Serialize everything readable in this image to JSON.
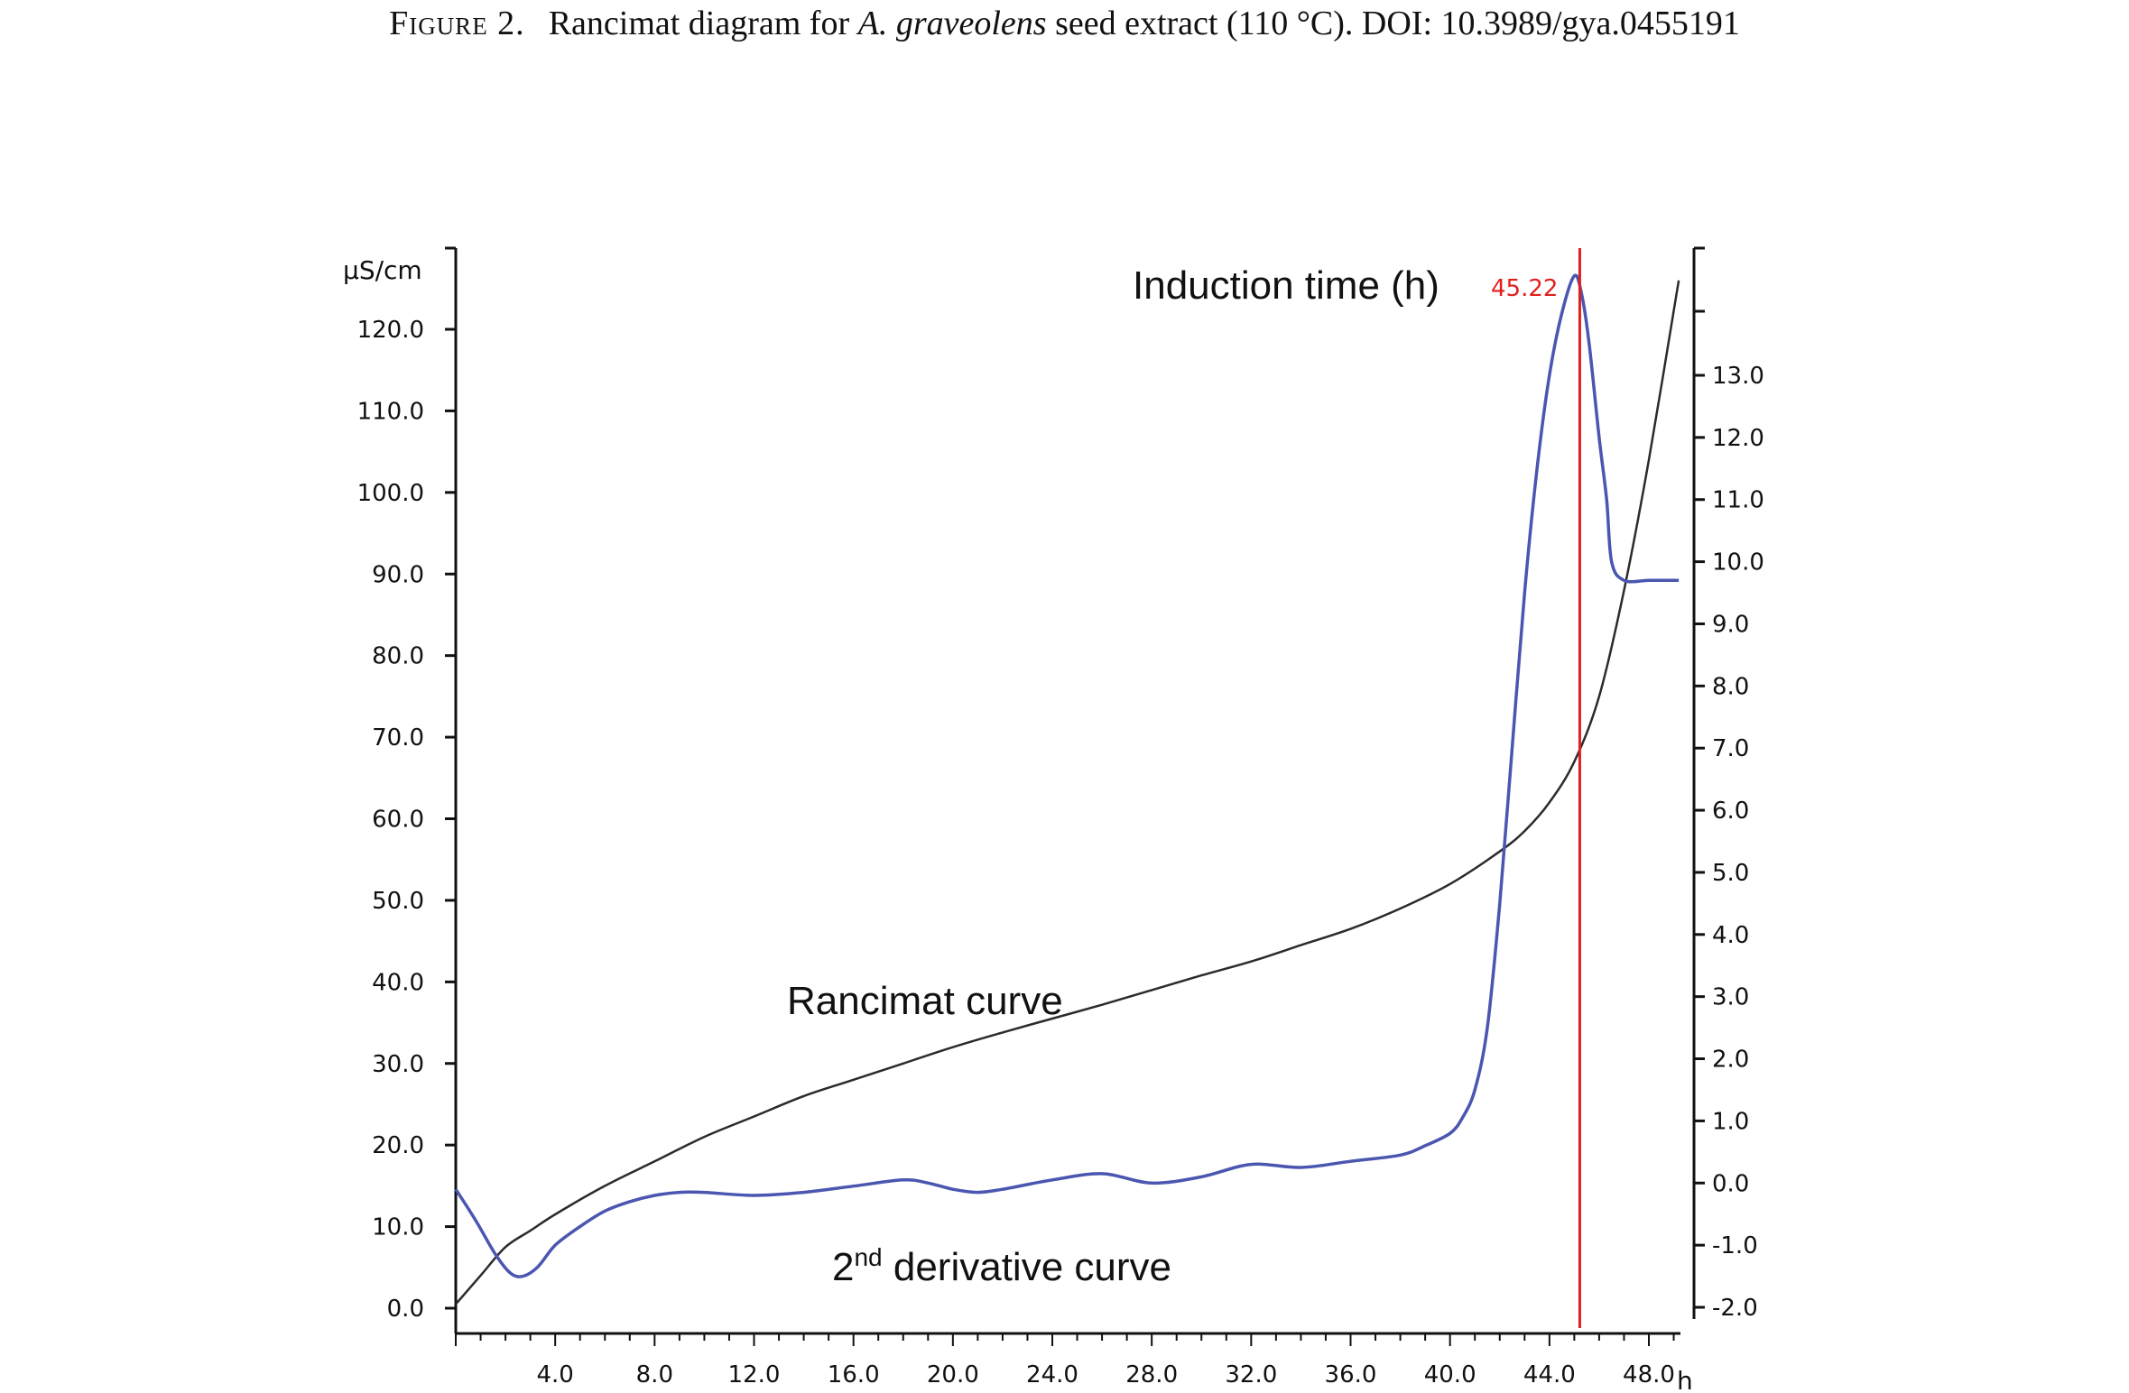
{
  "caption": {
    "prefix": "Figure 2.",
    "text_before": "Rancimat diagram for ",
    "species": "A. graveolens",
    "text_after": " seed extract (110 °C). DOI: 10.3989/gya.0455191"
  },
  "chart_data": {
    "type": "line",
    "title": "",
    "xlabel": "h",
    "ylabel": "μS/cm",
    "xlim": [
      0,
      49.5
    ],
    "ylim": [
      -1.5,
      128
    ],
    "y2lim": [
      -2.2,
      14.8
    ],
    "x_ticks": [
      "4.0",
      "8.0",
      "12.0",
      "16.0",
      "20.0",
      "24.0",
      "28.0",
      "32.0",
      "36.0",
      "40.0",
      "44.0",
      "48.0"
    ],
    "y_ticks": [
      "0.0",
      "10.0",
      "20.0",
      "30.0",
      "40.0",
      "50.0",
      "60.0",
      "70.0",
      "80.0",
      "90.0",
      "100.0",
      "110.0",
      "120.0"
    ],
    "y2_ticks": [
      "-2.0",
      "-1.0",
      "0.0",
      "1.0",
      "2.0",
      "3.0",
      "4.0",
      "5.0",
      "6.0",
      "7.0",
      "8.0",
      "9.0",
      "10.0",
      "11.0",
      "12.0",
      "13.0"
    ],
    "grid": false,
    "series": [
      {
        "name": "Rancimat curve",
        "axis": "left",
        "color": "#2b2b2b",
        "x": [
          0,
          1,
          2,
          3,
          4,
          6,
          8,
          10,
          12,
          14,
          16,
          18,
          20,
          22,
          24,
          26,
          28,
          30,
          32,
          34,
          36,
          38,
          40,
          42,
          43,
          44,
          45,
          46,
          47,
          48,
          49.2
        ],
        "y": [
          0.5,
          4,
          7.5,
          9.5,
          11.5,
          15,
          18,
          21,
          23.5,
          26,
          28,
          30,
          32,
          33.8,
          35.5,
          37.2,
          39,
          40.8,
          42.5,
          44.5,
          46.5,
          49,
          52,
          56,
          58.5,
          62,
          67,
          75,
          88,
          104,
          126
        ]
      },
      {
        "name": "2nd derivative curve",
        "axis": "right",
        "color": "#4a56b0",
        "x": [
          0,
          0.8,
          1.6,
          2.2,
          2.7,
          3.3,
          4,
          5,
          6,
          7,
          8,
          9,
          10,
          12,
          14,
          16,
          18,
          19,
          20,
          21,
          22,
          24,
          26,
          28,
          30,
          32,
          34,
          36,
          38,
          39,
          40,
          40.5,
          41,
          41.5,
          42,
          42.5,
          43,
          43.5,
          44,
          44.5,
          45,
          45.3,
          45.6,
          46,
          46.3,
          46.5,
          47,
          48,
          49.2
        ],
        "y": [
          -0.1,
          -0.6,
          -1.15,
          -1.45,
          -1.5,
          -1.35,
          -1.0,
          -0.7,
          -0.45,
          -0.3,
          -0.2,
          -0.15,
          -0.15,
          -0.2,
          -0.15,
          -0.05,
          0.05,
          0.0,
          -0.1,
          -0.15,
          -0.1,
          0.05,
          0.15,
          0.0,
          0.1,
          0.3,
          0.25,
          0.35,
          0.45,
          0.6,
          0.8,
          1.05,
          1.5,
          2.5,
          4.5,
          7.0,
          9.5,
          11.5,
          13.0,
          14.0,
          14.6,
          14.3,
          13.5,
          12.0,
          11.0,
          10.0,
          9.7,
          9.7,
          9.7
        ]
      }
    ],
    "annotations": {
      "induction_label": "Induction time (h)",
      "induction_value": "45.22",
      "induction_x": 45.22,
      "induction_color": "#e0201e",
      "rancimat_label": "Rancimat curve",
      "derivative_label_base": "2",
      "derivative_label_sup": "nd",
      "derivative_label_rest": " derivative curve"
    }
  }
}
